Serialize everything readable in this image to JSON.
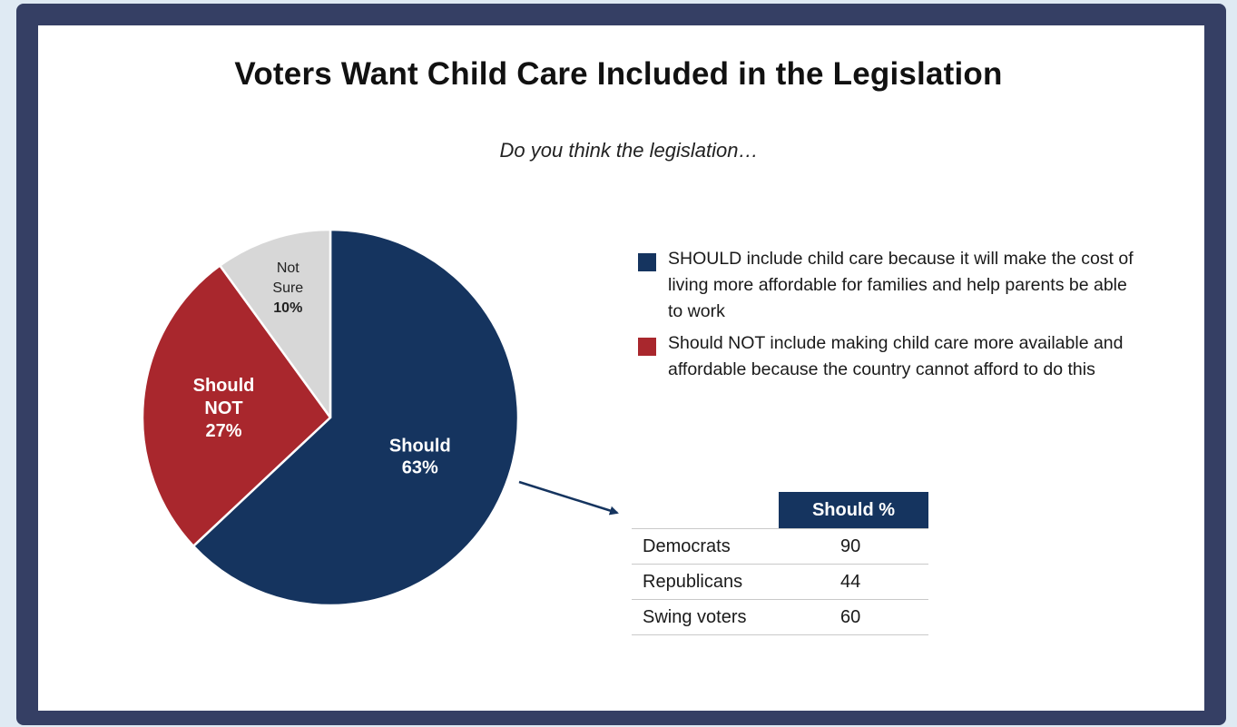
{
  "chart_data": [
    {
      "type": "pie",
      "title": "Voters Want Child Care Included in the Legislation",
      "subtitle": "Do you think the legislation…",
      "slices": [
        {
          "label_lines": [
            "Should"
          ],
          "value": 63,
          "display": "63%",
          "color": "#15345f"
        },
        {
          "label_lines": [
            "Should",
            "NOT"
          ],
          "value": 27,
          "display": "27%",
          "color": "#a9272d"
        },
        {
          "label_lines": [
            "Not",
            "Sure"
          ],
          "value": 10,
          "display": "10%",
          "color": "#d7d7d7"
        }
      ],
      "legend": [
        {
          "text": "SHOULD include child care because it will make the cost of living more affordable for families and help parents be able to work",
          "color": "#15345f"
        },
        {
          "text": "Should NOT include making child care more available and affordable because the country cannot afford to do this",
          "color": "#a9272d"
        }
      ],
      "legend_position": "right"
    },
    {
      "type": "table",
      "columns": [
        "",
        "Should %"
      ],
      "rows": [
        {
          "category": "Democrats",
          "value": "90"
        },
        {
          "category": "Republicans",
          "value": "44"
        },
        {
          "category": "Swing voters",
          "value": "60"
        }
      ]
    }
  ],
  "colors": {
    "frame": "#353f64",
    "accent_blue": "#15345f",
    "accent_red": "#a9272d",
    "neutral_gray": "#d7d7d7"
  }
}
